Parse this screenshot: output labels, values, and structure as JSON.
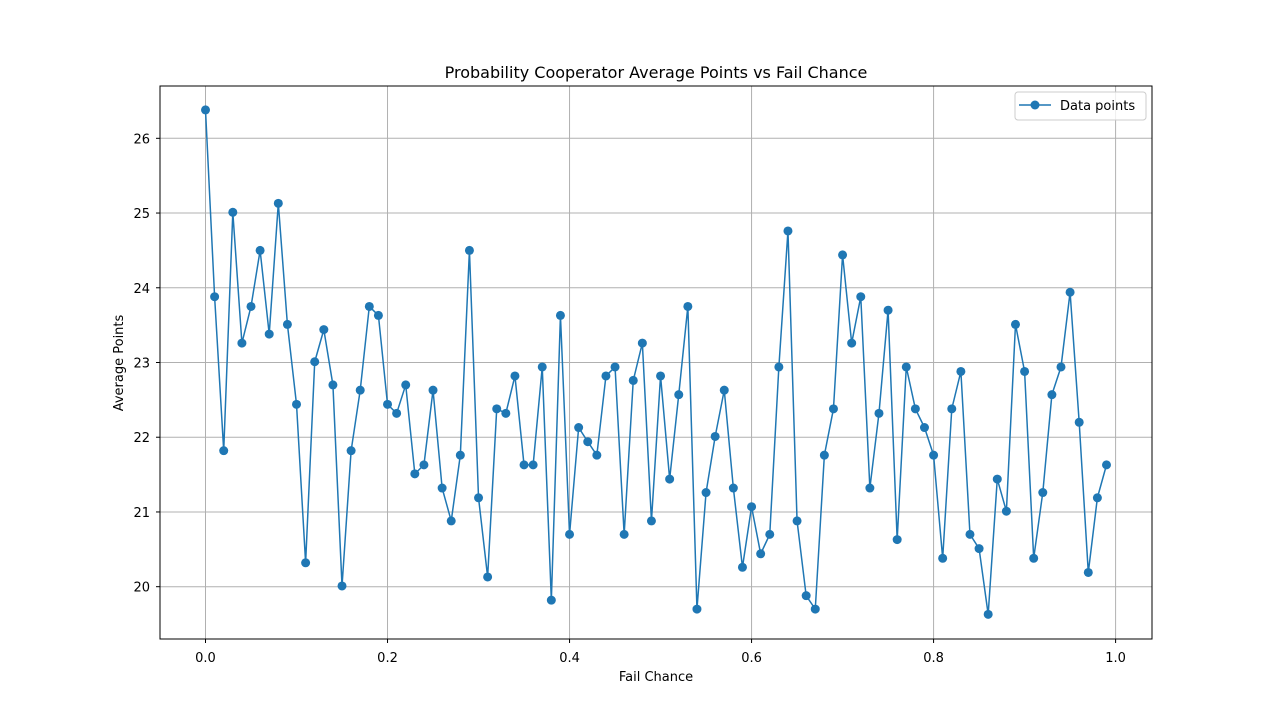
{
  "chart_data": {
    "type": "line",
    "title": "Probability Cooperator Average Points vs Fail Chance",
    "xlabel": "Fail Chance",
    "ylabel": "Average Points",
    "xlim": [
      -0.05,
      1.04
    ],
    "ylim": [
      19.3,
      26.7
    ],
    "x_ticks": [
      0.0,
      0.2,
      0.4,
      0.6,
      0.8,
      1.0
    ],
    "x_tick_labels": [
      "0.0",
      "0.2",
      "0.4",
      "0.6",
      "0.8",
      "1.0"
    ],
    "y_ticks": [
      20,
      21,
      22,
      23,
      24,
      25,
      26
    ],
    "y_tick_labels": [
      "20",
      "21",
      "22",
      "23",
      "24",
      "25",
      "26"
    ],
    "grid": true,
    "legend_position": "top-right",
    "color": "#1f77b4",
    "series": [
      {
        "name": "Data points",
        "x": [
          0.0,
          0.01,
          0.02,
          0.03,
          0.04,
          0.05,
          0.06,
          0.07,
          0.08,
          0.09,
          0.1,
          0.11,
          0.12,
          0.13,
          0.14,
          0.15,
          0.16,
          0.17,
          0.18,
          0.19,
          0.2,
          0.21,
          0.22,
          0.23,
          0.24,
          0.25,
          0.26,
          0.27,
          0.28,
          0.29,
          0.3,
          0.31,
          0.32,
          0.33,
          0.34,
          0.35,
          0.36,
          0.37,
          0.38,
          0.39,
          0.4,
          0.41,
          0.42,
          0.43,
          0.44,
          0.45,
          0.46,
          0.47,
          0.48,
          0.49,
          0.5,
          0.51,
          0.52,
          0.53,
          0.54,
          0.55,
          0.56,
          0.57,
          0.58,
          0.59,
          0.6,
          0.61,
          0.62,
          0.63,
          0.64,
          0.65,
          0.66,
          0.67,
          0.68,
          0.69,
          0.7,
          0.71,
          0.72,
          0.73,
          0.74,
          0.75,
          0.76,
          0.77,
          0.78,
          0.79,
          0.8,
          0.81,
          0.82,
          0.83,
          0.84,
          0.85,
          0.86,
          0.87,
          0.88,
          0.89,
          0.9,
          0.91,
          0.92,
          0.93,
          0.94,
          0.95,
          0.96,
          0.97,
          0.98,
          0.99
        ],
        "y": [
          26.38,
          23.88,
          21.82,
          25.01,
          23.26,
          23.75,
          24.5,
          23.38,
          25.13,
          23.51,
          22.44,
          20.32,
          23.01,
          23.44,
          22.7,
          20.01,
          21.82,
          22.63,
          23.75,
          23.63,
          22.44,
          22.32,
          22.7,
          21.51,
          21.63,
          22.63,
          21.32,
          20.88,
          21.76,
          24.5,
          21.19,
          20.13,
          22.38,
          22.32,
          22.82,
          21.63,
          21.63,
          22.94,
          19.82,
          23.63,
          20.7,
          22.13,
          21.94,
          21.76,
          22.82,
          22.94,
          20.7,
          22.76,
          23.26,
          20.88,
          22.82,
          21.44,
          22.57,
          23.75,
          19.7,
          21.26,
          22.01,
          22.63,
          21.32,
          20.26,
          21.07,
          20.44,
          20.7,
          22.94,
          24.76,
          20.88,
          19.88,
          19.7,
          21.76,
          22.38,
          24.44,
          23.26,
          23.88,
          21.32,
          22.32,
          23.7,
          20.63,
          22.94,
          22.38,
          22.13,
          21.76,
          20.38,
          22.38,
          22.88,
          20.7,
          20.51,
          19.63,
          21.44,
          21.01,
          23.51,
          22.88,
          20.38,
          21.26,
          22.57,
          22.94,
          23.94,
          22.2,
          20.19,
          21.19,
          21.63
        ]
      }
    ]
  }
}
